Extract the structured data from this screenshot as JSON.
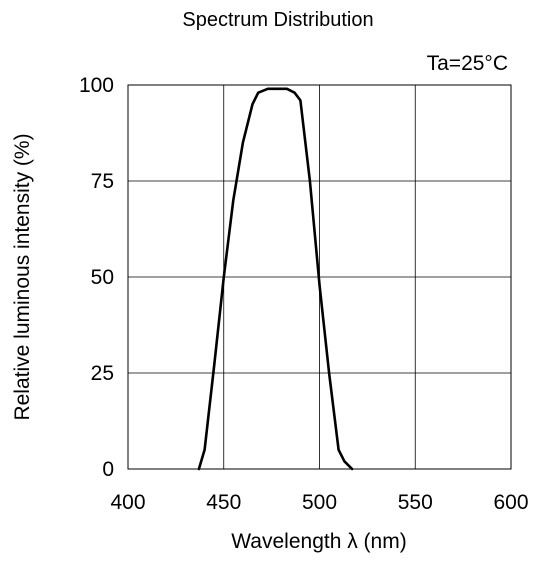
{
  "chart_data": {
    "type": "line",
    "title": "Spectrum Distribution",
    "condition": "Ta=25°C",
    "xlabel": "Wavelength λ (nm)",
    "ylabel": "Relative luminous intensity (%)",
    "xlim": [
      400,
      600
    ],
    "ylim": [
      0,
      100
    ],
    "x_ticks": [
      "400",
      "450",
      "500",
      "550",
      "600"
    ],
    "y_ticks": [
      "0",
      "25",
      "50",
      "75",
      "100"
    ],
    "grid": true,
    "series": [
      {
        "x": [
          437,
          440,
          445,
          450,
          455,
          460,
          465,
          468,
          473,
          478,
          483,
          487,
          490,
          495,
          500,
          505,
          510,
          513,
          517
        ],
        "y": [
          0,
          5,
          27,
          50,
          70,
          85,
          95,
          98,
          99,
          99,
          99,
          98,
          96,
          75,
          48,
          25,
          5,
          2,
          0
        ]
      }
    ],
    "color": "#000000"
  }
}
